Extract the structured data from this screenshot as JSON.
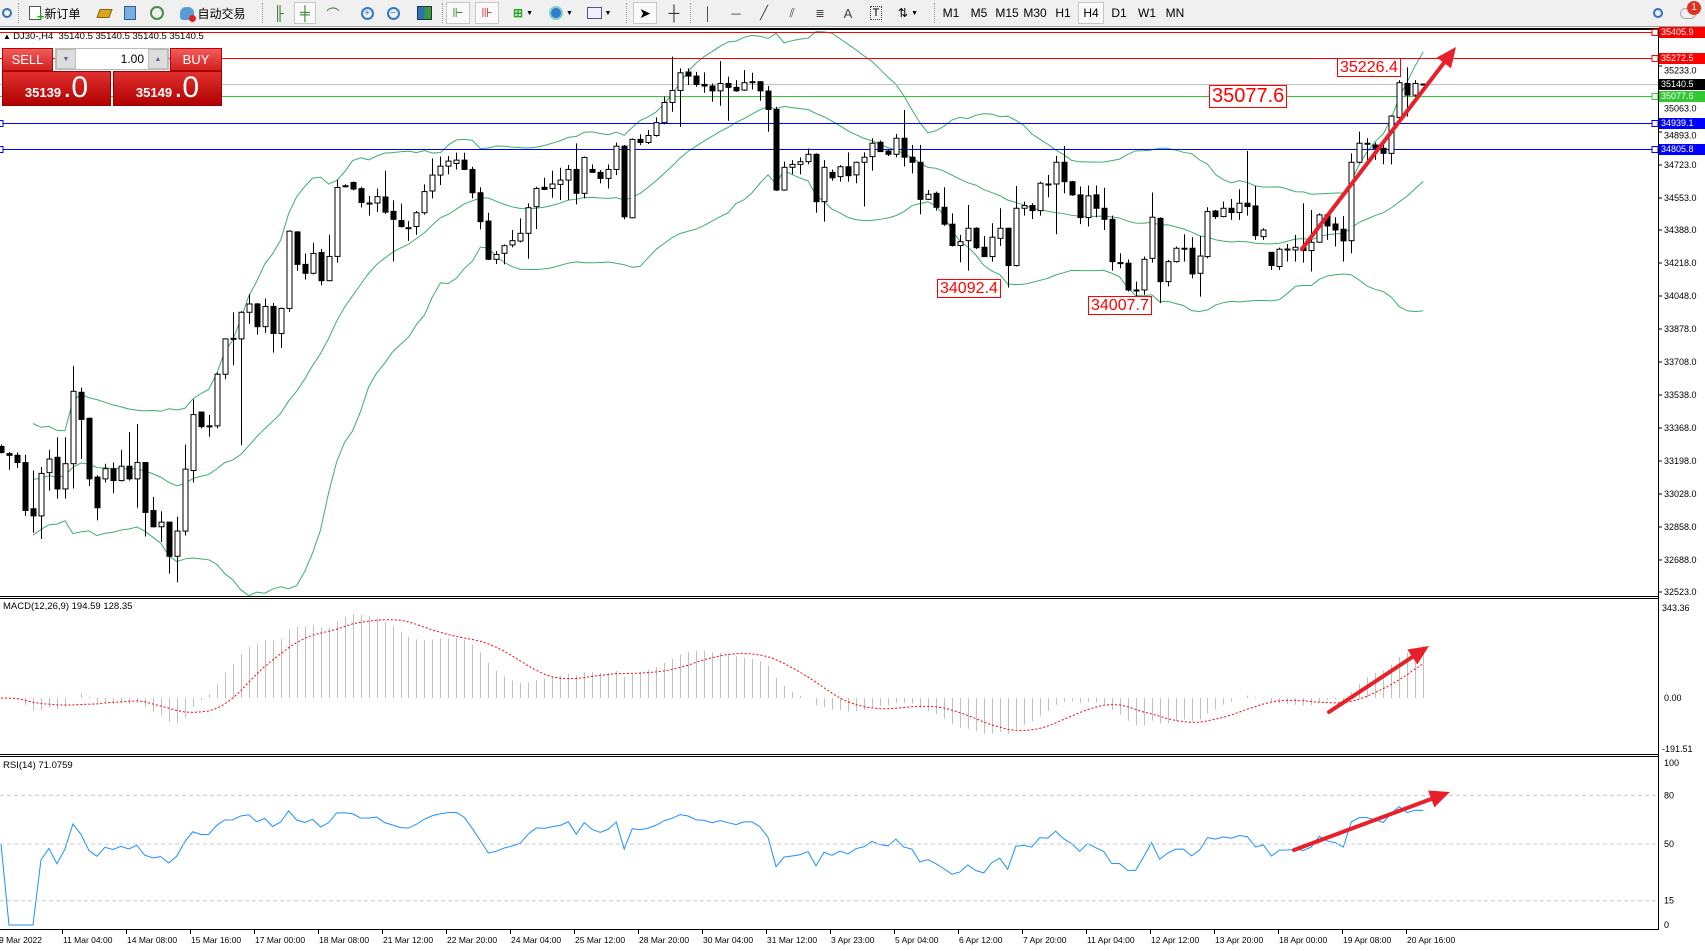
{
  "toolbar": {
    "new_order": "新订单",
    "auto_trading": "自动交易",
    "timeframes": [
      "M1",
      "M5",
      "M15",
      "M30",
      "H1",
      "H4",
      "D1",
      "W1",
      "MN"
    ],
    "active_timeframe": "H4",
    "notification_count": "1"
  },
  "trade_panel": {
    "sell_label": "SELL",
    "buy_label": "BUY",
    "lot": "1.00",
    "sell_main": "35139",
    "sell_frac": ".0",
    "buy_main": "35149",
    "buy_frac": ".0"
  },
  "chart": {
    "symbol_line": "DJ30-,H4  35140.5 35140.5 35140.5 35140.5",
    "price_ticks": [
      "35233.0",
      "35063.0",
      "34893.0",
      "34723.0",
      "34553.0",
      "34388.0",
      "34218.0",
      "34048.0",
      "33878.0",
      "33708.0",
      "33538.0",
      "33368.0",
      "33198.0",
      "33028.0",
      "32858.0",
      "32688.0",
      "32523.0"
    ],
    "hlines": [
      {
        "price": "35405.9",
        "color": "#ff0000"
      },
      {
        "price": "35272.5",
        "color": "#ff0000"
      },
      {
        "price": "35140.5",
        "color": "#000000"
      },
      {
        "price": "35077.6",
        "color": "#32c832"
      },
      {
        "price": "34939.1",
        "color": "#0000ff"
      },
      {
        "price": "34805.8",
        "color": "#0000ff"
      }
    ],
    "annotations": [
      "35226.4",
      "35077.6",
      "34092.4",
      "34007.7"
    ],
    "time_labels": [
      "9 Mar 2022",
      "11 Mar 04:00",
      "14 Mar 08:00",
      "15 Mar 16:00",
      "17 Mar 00:00",
      "18 Mar 08:00",
      "21 Mar 12:00",
      "22 Mar 20:00",
      "24 Mar 04:00",
      "25 Mar 12:00",
      "28 Mar 20:00",
      "30 Mar 04:00",
      "31 Mar 12:00",
      "3 Apr 23:00",
      "5 Apr 04:00",
      "6 Apr 12:00",
      "7 Apr 20:00",
      "11 Apr 04:00",
      "12 Apr 12:00",
      "13 Apr 20:00",
      "18 Apr 00:00",
      "19 Apr 08:00",
      "20 Apr 16:00"
    ],
    "colors": {
      "bands": "#3cae6e",
      "arrow": "#e8202a",
      "macd_bars": "#c0c0c0",
      "signal": "#ff0000",
      "rsi": "#1e90ff"
    },
    "candles": [
      [
        33273,
        33283,
        33236,
        33242
      ],
      [
        33236,
        33245,
        33152,
        33227
      ],
      [
        33227,
        33242,
        33162,
        33190
      ],
      [
        33190,
        33230,
        32915,
        32943
      ],
      [
        32952,
        33149,
        32828,
        32915
      ],
      [
        32915,
        33167,
        32796,
        33134
      ],
      [
        33138,
        33255,
        33045,
        33208
      ],
      [
        33217,
        33320,
        33004,
        33054
      ],
      [
        33054,
        33320,
        33004,
        33184
      ],
      [
        33184,
        33687,
        33056,
        33557
      ],
      [
        33552,
        33576,
        33208,
        33412
      ],
      [
        33418,
        33422,
        33069,
        33106
      ],
      [
        33115,
        33125,
        32892,
        32957
      ],
      [
        33106,
        33184,
        33087,
        33158
      ],
      [
        33158,
        33190,
        33032,
        33097
      ],
      [
        33097,
        33255,
        33093,
        33171
      ],
      [
        33171,
        33347,
        33097,
        33106
      ],
      [
        33106,
        33388,
        32957,
        33190
      ],
      [
        33190,
        33193,
        32809,
        32933
      ],
      [
        32943,
        33013,
        32855,
        32859
      ],
      [
        32859,
        32939,
        32781,
        32883
      ],
      [
        32883,
        32883,
        32618,
        32707
      ],
      [
        32707,
        32911,
        32573,
        32837
      ],
      [
        32837,
        33282,
        32814,
        33156
      ],
      [
        33149,
        33515,
        33087,
        33437
      ],
      [
        33450,
        33453,
        33366,
        33375
      ],
      [
        33379,
        33435,
        33323,
        33379
      ],
      [
        33379,
        33654,
        33366,
        33645
      ],
      [
        33645,
        33830,
        33620,
        33827
      ],
      [
        33827,
        33964,
        33691,
        33830
      ],
      [
        33827,
        33970,
        33279,
        33964
      ],
      [
        33964,
        34057,
        33905,
        34007
      ],
      [
        34007,
        34012,
        33849,
        33890
      ],
      [
        33890,
        34035,
        33858,
        33994
      ],
      [
        33994,
        34012,
        33756,
        33855
      ],
      [
        33855,
        33988,
        33780,
        33984
      ],
      [
        33984,
        34387,
        33966,
        34382
      ],
      [
        34378,
        34382,
        34178,
        34211
      ],
      [
        34211,
        34267,
        34133,
        34165
      ],
      [
        34165,
        34322,
        34159,
        34267
      ],
      [
        34272,
        34291,
        34103,
        34127
      ],
      [
        34127,
        34363,
        34124,
        34252
      ],
      [
        34252,
        34647,
        34220,
        34607
      ],
      [
        34616,
        34624,
        34607,
        34616
      ],
      [
        34633,
        34638,
        34592,
        34599
      ],
      [
        34601,
        34610,
        34504,
        34530
      ],
      [
        34527,
        34564,
        34462,
        34527
      ],
      [
        34527,
        34601,
        34480,
        34560
      ],
      [
        34558,
        34694,
        34471,
        34480
      ],
      [
        34484,
        34541,
        34226,
        34443
      ],
      [
        34437,
        34523,
        34400,
        34406
      ],
      [
        34400,
        34434,
        34332,
        34400
      ],
      [
        34406,
        34486,
        34363,
        34477
      ],
      [
        34477,
        34623,
        34467,
        34586
      ],
      [
        34589,
        34757,
        34551,
        34671
      ],
      [
        34671,
        34766,
        34620,
        34717
      ],
      [
        34717,
        34769,
        34675,
        34743
      ],
      [
        34731,
        34786,
        34700,
        34748
      ],
      [
        34748,
        34786,
        34697,
        34700
      ],
      [
        34700,
        34714,
        34551,
        34580
      ],
      [
        34580,
        34608,
        34391,
        34431
      ],
      [
        34434,
        34477,
        34233,
        34237
      ],
      [
        34237,
        34280,
        34213,
        34262
      ],
      [
        34268,
        34314,
        34211,
        34307
      ],
      [
        34311,
        34388,
        34299,
        34333
      ],
      [
        34331,
        34448,
        34324,
        34371
      ],
      [
        34371,
        34525,
        34240,
        34503
      ],
      [
        34508,
        34611,
        34393,
        34602
      ],
      [
        34608,
        34657,
        34594,
        34597
      ],
      [
        34602,
        34693,
        34554,
        34625
      ],
      [
        34623,
        34709,
        34542,
        34645
      ],
      [
        34645,
        34723,
        34542,
        34700
      ],
      [
        34700,
        34834,
        34520,
        34577
      ],
      [
        34577,
        34766,
        34551,
        34762
      ],
      [
        34700,
        34726,
        34685,
        34685
      ],
      [
        34685,
        34697,
        34628,
        34654
      ],
      [
        34654,
        34726,
        34602,
        34700
      ],
      [
        34700,
        34838,
        34671,
        34820
      ],
      [
        34820,
        34826,
        34443,
        34456
      ],
      [
        34451,
        34860,
        34448,
        34855
      ],
      [
        34855,
        34881,
        34826,
        34839
      ],
      [
        34839,
        34903,
        34831,
        34875
      ],
      [
        34875,
        34968,
        34869,
        34941
      ],
      [
        34941,
        35075,
        34932,
        35045
      ],
      [
        35045,
        35281,
        34997,
        35107
      ],
      [
        35107,
        35221,
        34920,
        35198
      ],
      [
        35202,
        35221,
        35135,
        35181
      ],
      [
        35181,
        35203,
        35126,
        35138
      ],
      [
        35138,
        35200,
        35095,
        35130
      ],
      [
        35130,
        35143,
        35049,
        35105
      ],
      [
        35105,
        35258,
        35028,
        35143
      ],
      [
        35143,
        35178,
        34951,
        35123
      ],
      [
        35123,
        35160,
        35100,
        35105
      ],
      [
        35109,
        35212,
        35105,
        35147
      ],
      [
        35152,
        35198,
        35112,
        35147
      ],
      [
        35152,
        35155,
        35054,
        35105
      ],
      [
        35104,
        35130,
        34894,
        35009
      ],
      [
        35009,
        35023,
        34589,
        34594
      ],
      [
        34594,
        34740,
        34590,
        34711
      ],
      [
        34711,
        34748,
        34675,
        34726
      ],
      [
        34726,
        34762,
        34675,
        34740
      ],
      [
        34740,
        34808,
        34726,
        34778
      ],
      [
        34778,
        34783,
        34477,
        34534
      ],
      [
        34534,
        34748,
        34431,
        34711
      ],
      [
        34685,
        34700,
        34642,
        34657
      ],
      [
        34663,
        34723,
        34637,
        34714
      ],
      [
        34714,
        34788,
        34637,
        34668
      ],
      [
        34672,
        34740,
        34629,
        34737
      ],
      [
        34737,
        34788,
        34509,
        34763
      ],
      [
        34766,
        34861,
        34694,
        34835
      ],
      [
        34840,
        34849,
        34792,
        34792
      ],
      [
        34795,
        34804,
        34769,
        34778
      ],
      [
        34778,
        34883,
        34763,
        34861
      ],
      [
        34861,
        35006,
        34715,
        34763
      ],
      [
        34763,
        34826,
        34680,
        34737
      ],
      [
        34737,
        34826,
        34469,
        34546
      ],
      [
        34546,
        34594,
        34543,
        34572
      ],
      [
        34577,
        34586,
        34488,
        34505
      ],
      [
        34505,
        34608,
        34409,
        34418
      ],
      [
        34418,
        34474,
        34303,
        34308
      ],
      [
        34308,
        34363,
        34222,
        34328
      ],
      [
        34333,
        34517,
        34179,
        34397
      ],
      [
        34397,
        34402,
        34290,
        34297
      ],
      [
        34299,
        34357,
        34251,
        34251
      ],
      [
        34251,
        34423,
        34225,
        34351
      ],
      [
        34345,
        34500,
        34306,
        34397
      ],
      [
        34397,
        34400,
        34092,
        34205
      ],
      [
        34205,
        34615,
        34200,
        34500
      ],
      [
        34500,
        34534,
        34462,
        34514
      ],
      [
        34514,
        34526,
        34445,
        34488
      ],
      [
        34488,
        34637,
        34462,
        34629
      ],
      [
        34625,
        34672,
        34557,
        34625
      ],
      [
        34625,
        34770,
        34366,
        34737
      ],
      [
        34737,
        34821,
        34577,
        34637
      ],
      [
        34637,
        34641,
        34564,
        34569
      ],
      [
        34569,
        34612,
        34418,
        34452
      ],
      [
        34452,
        34617,
        34406,
        34564
      ],
      [
        34569,
        34617,
        34454,
        34500
      ],
      [
        34500,
        34606,
        34388,
        34443
      ],
      [
        34443,
        34462,
        34179,
        34225
      ],
      [
        34220,
        34268,
        34191,
        34220
      ],
      [
        34217,
        34237,
        34071,
        34079
      ],
      [
        34079,
        34122,
        34008,
        34079
      ],
      [
        34079,
        34251,
        34054,
        34237
      ],
      [
        34242,
        34581,
        34220,
        34454
      ],
      [
        34448,
        34454,
        34011,
        34122
      ],
      [
        34122,
        34234,
        34097,
        34225
      ],
      [
        34225,
        34303,
        34220,
        34294
      ],
      [
        34294,
        34366,
        34225,
        34294
      ],
      [
        34294,
        34351,
        34139,
        34162
      ],
      [
        34165,
        34357,
        34045,
        34254
      ],
      [
        34251,
        34505,
        34242,
        34483
      ],
      [
        34486,
        34491,
        34445,
        34457
      ],
      [
        34457,
        34534,
        34454,
        34500
      ],
      [
        34500,
        34548,
        34440,
        34478
      ],
      [
        34478,
        34598,
        34440,
        34526
      ],
      [
        34526,
        34795,
        34462,
        34509
      ],
      [
        34512,
        34615,
        34337,
        34359
      ],
      [
        34354,
        34397,
        34337,
        34388
      ],
      [
        34273,
        34273,
        34182,
        34205
      ],
      [
        34200,
        34297,
        34182,
        34289
      ],
      [
        34290,
        34316,
        34225,
        34290
      ],
      [
        34285,
        34363,
        34225,
        34299
      ],
      [
        34299,
        34526,
        34220,
        34282
      ],
      [
        34282,
        34491,
        34174,
        34325
      ],
      [
        34325,
        34474,
        34323,
        34466
      ],
      [
        34466,
        34474,
        34337,
        34409
      ],
      [
        34419,
        34454,
        34303,
        34388
      ],
      [
        34392,
        34460,
        34225,
        34332
      ],
      [
        34333,
        34783,
        34268,
        34737
      ],
      [
        34737,
        34895,
        34732,
        34835
      ],
      [
        34835,
        34861,
        34749,
        34835
      ],
      [
        34826,
        34838,
        34749,
        34809
      ],
      [
        34809,
        34843,
        34727,
        34783
      ],
      [
        34783,
        34980,
        34726,
        34975
      ],
      [
        34968,
        35160,
        34950,
        35147
      ],
      [
        35143,
        35226,
        34972,
        35083
      ],
      [
        35083,
        35160,
        35075,
        35143
      ],
      [
        35140,
        35141,
        35140,
        35140
      ]
    ]
  },
  "macd": {
    "label": "MACD(12,26,9) 194.59 128.35",
    "max_label": "343.36",
    "zero_label": "0.00",
    "min_label": "-191.51"
  },
  "rsi": {
    "label": "RSI(14) 71.0759",
    "levels": [
      "100",
      "80",
      "50",
      "15",
      "0"
    ]
  }
}
